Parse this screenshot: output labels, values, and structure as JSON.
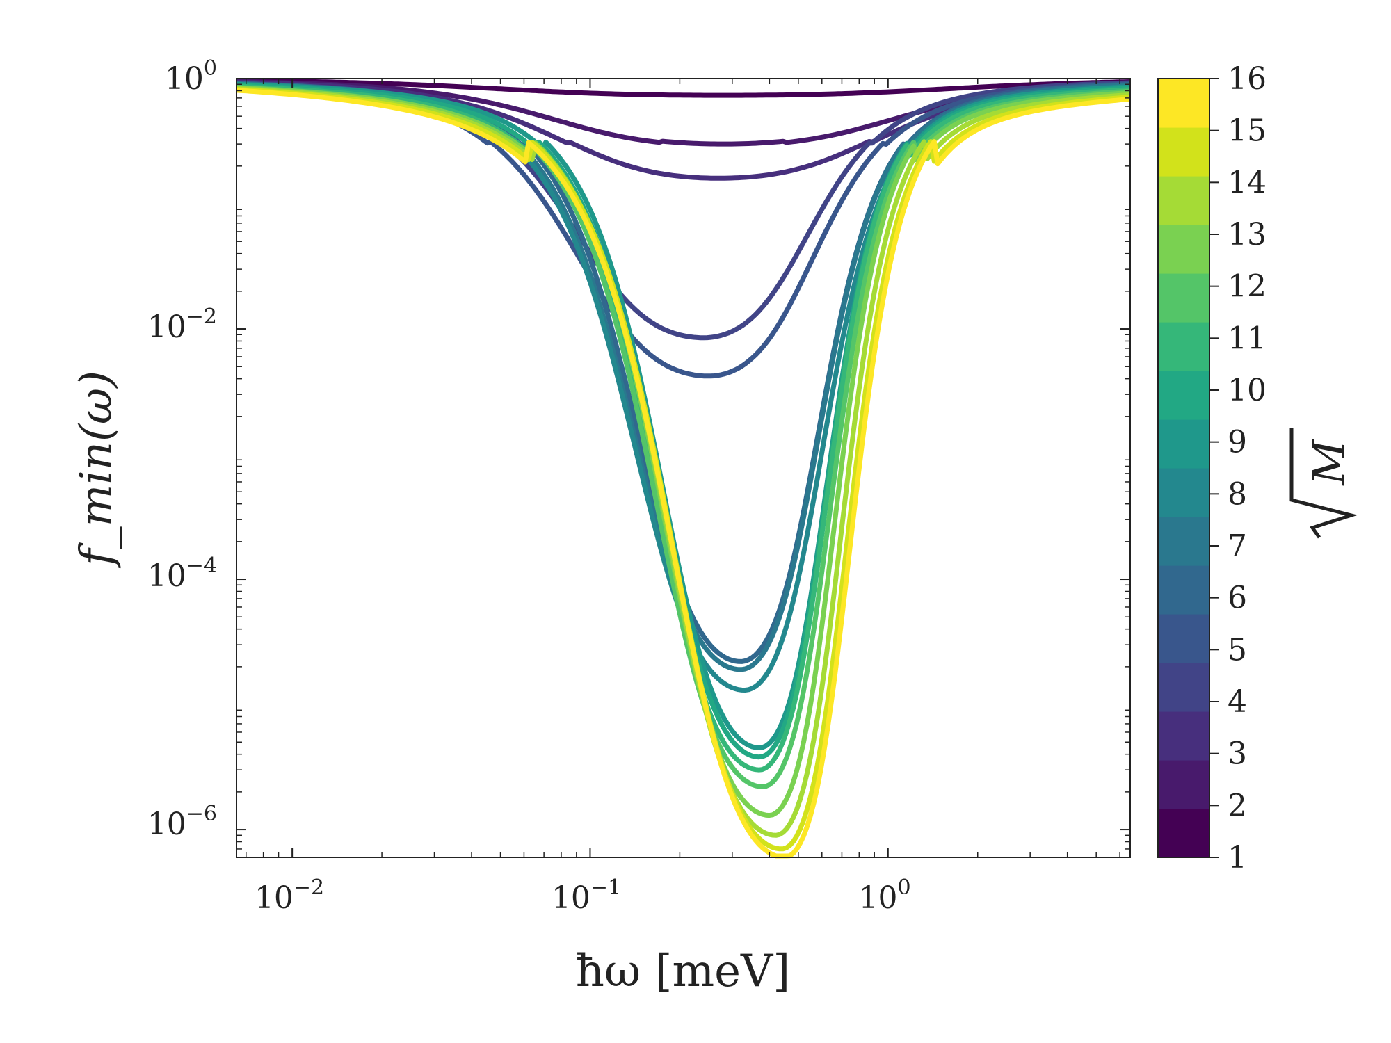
{
  "chart_data": {
    "type": "line",
    "title": "",
    "xscale": "log",
    "yscale": "log",
    "xlim": [
      0.0065,
      6.5
    ],
    "ylim": [
      6e-07,
      1.0
    ],
    "xlabel": "ħω [meV]",
    "ylabel": "f_min(ω)",
    "x_ticks": [
      {
        "value": 0.01,
        "base": "10",
        "exp": "−2"
      },
      {
        "value": 0.1,
        "base": "10",
        "exp": "−1"
      },
      {
        "value": 1,
        "base": "10",
        "exp": "0"
      }
    ],
    "y_ticks": [
      {
        "value": 1,
        "base": "10",
        "exp": "0"
      },
      {
        "value": 0.01,
        "base": "10",
        "exp": "−2"
      },
      {
        "value": 0.0001,
        "base": "10",
        "exp": "−4"
      },
      {
        "value": 1e-06,
        "base": "10",
        "exp": "−6"
      }
    ],
    "colorbar": {
      "label": "√M",
      "label_symbol": "M",
      "colormap": "viridis",
      "ticks": [
        "1",
        "2",
        "3",
        "4",
        "5",
        "6",
        "7",
        "8",
        "9",
        "10",
        "11",
        "12",
        "13",
        "14",
        "15",
        "16"
      ]
    },
    "series": [
      {
        "name": "√M = 1",
        "color": "#440154",
        "min_x": 0.28,
        "min_y": 0.75,
        "width_dec": 0.85,
        "left_shift": 0.0,
        "rise": 0.003
      },
      {
        "name": "√M = 2",
        "color": "#481a6c",
        "min_x": 0.28,
        "min_y": 0.3,
        "width_dec": 0.65,
        "left_shift": 0.0,
        "rise": 0.004
      },
      {
        "name": "√M = 3",
        "color": "#472f7d",
        "min_x": 0.27,
        "min_y": 0.16,
        "width_dec": 0.6,
        "left_shift": 0.0,
        "rise": 0.006
      },
      {
        "name": "√M = 4",
        "color": "#414487",
        "min_x": 0.24,
        "min_y": 0.0085,
        "width_dec": 0.4,
        "left_shift": 0.05,
        "rise": 0.01
      },
      {
        "name": "√M = 5",
        "color": "#39568c",
        "min_x": 0.25,
        "min_y": 0.0042,
        "width_dec": 0.4,
        "left_shift": 0.06,
        "rise": 0.013
      },
      {
        "name": "√M = 6",
        "color": "#31688e",
        "min_x": 0.32,
        "min_y": 2.2e-05,
        "width_dec": 0.3,
        "left_shift": 0.08,
        "rise": 0.017
      },
      {
        "name": "√M = 7",
        "color": "#2a788e",
        "min_x": 0.32,
        "min_y": 1.9e-05,
        "width_dec": 0.3,
        "left_shift": 0.09,
        "rise": 0.021
      },
      {
        "name": "√M = 8",
        "color": "#23888e",
        "min_x": 0.33,
        "min_y": 1.3e-05,
        "width_dec": 0.3,
        "left_shift": 0.1,
        "rise": 0.026
      },
      {
        "name": "√M = 9",
        "color": "#1f988b",
        "min_x": 0.37,
        "min_y": 4.5e-06,
        "width_dec": 0.26,
        "left_shift": 0.11,
        "rise": 0.031
      },
      {
        "name": "√M = 10",
        "color": "#22a884",
        "min_x": 0.37,
        "min_y": 3.8e-06,
        "width_dec": 0.26,
        "left_shift": 0.12,
        "rise": 0.037
      },
      {
        "name": "√M = 11",
        "color": "#35b779",
        "min_x": 0.37,
        "min_y": 3e-06,
        "width_dec": 0.26,
        "left_shift": 0.13,
        "rise": 0.043
      },
      {
        "name": "√M = 12",
        "color": "#54c568",
        "min_x": 0.38,
        "min_y": 2.2e-06,
        "width_dec": 0.26,
        "left_shift": 0.14,
        "rise": 0.05
      },
      {
        "name": "√M = 13",
        "color": "#7ad151",
        "min_x": 0.4,
        "min_y": 1.3e-06,
        "width_dec": 0.25,
        "left_shift": 0.15,
        "rise": 0.057
      },
      {
        "name": "√M = 14",
        "color": "#a5db36",
        "min_x": 0.42,
        "min_y": 9e-07,
        "width_dec": 0.25,
        "left_shift": 0.16,
        "rise": 0.064
      },
      {
        "name": "√M = 15",
        "color": "#d2e21b",
        "min_x": 0.44,
        "min_y": 7e-07,
        "width_dec": 0.25,
        "left_shift": 0.17,
        "rise": 0.072
      },
      {
        "name": "√M = 16",
        "color": "#fde725",
        "min_x": 0.45,
        "min_y": 6e-07,
        "width_dec": 0.25,
        "left_shift": 0.18,
        "rise": 0.08
      }
    ]
  }
}
